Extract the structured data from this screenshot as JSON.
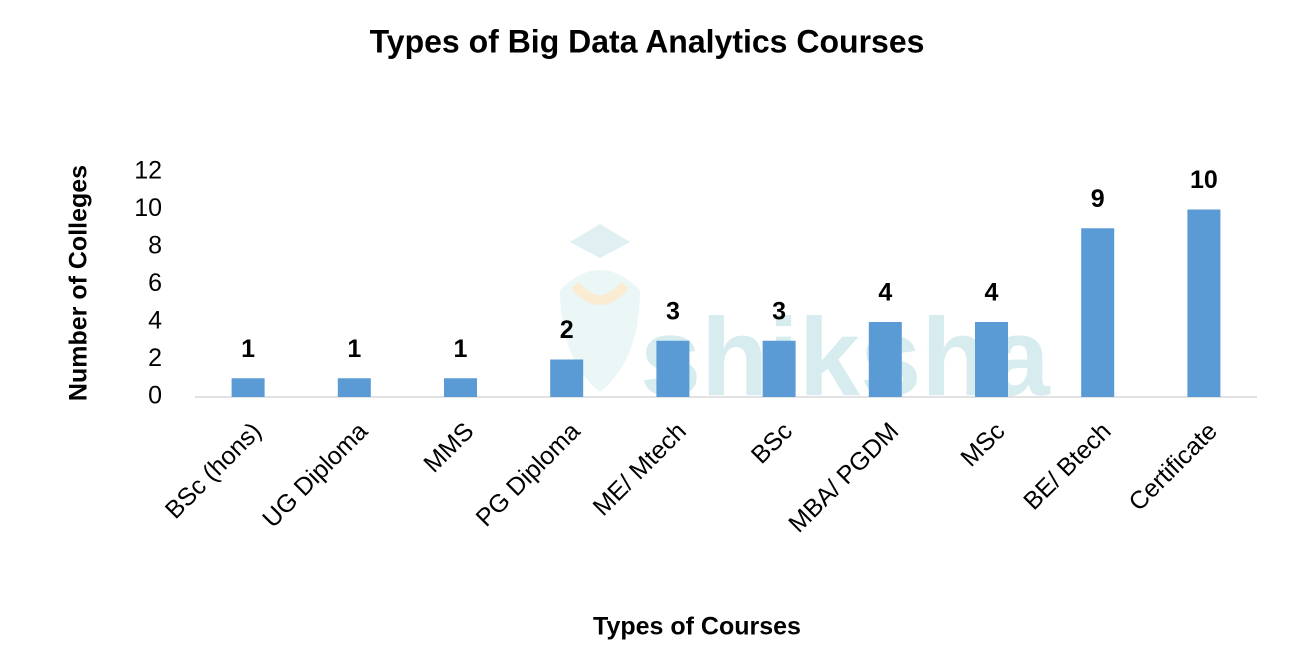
{
  "watermark": "shiksha",
  "chart_data": {
    "type": "bar",
    "title": "Types of Big Data Analytics Courses",
    "x_label": "Types of Courses",
    "y_label": "Number of Colleges",
    "categories": [
      "BSc (hons)",
      "UG Diploma",
      "MMS",
      "PG Diploma",
      "ME/ Mtech",
      "BSc",
      "MBA/ PGDM",
      "MSc",
      "BE/ Btech",
      "Certificate"
    ],
    "values": [
      1,
      1,
      1,
      2,
      3,
      3,
      4,
      4,
      9,
      10
    ],
    "color": "#5b9bd5",
    "ylim": [
      0,
      12
    ],
    "yticks": [
      0,
      2,
      4,
      6,
      8,
      10,
      12
    ],
    "grid": false
  }
}
